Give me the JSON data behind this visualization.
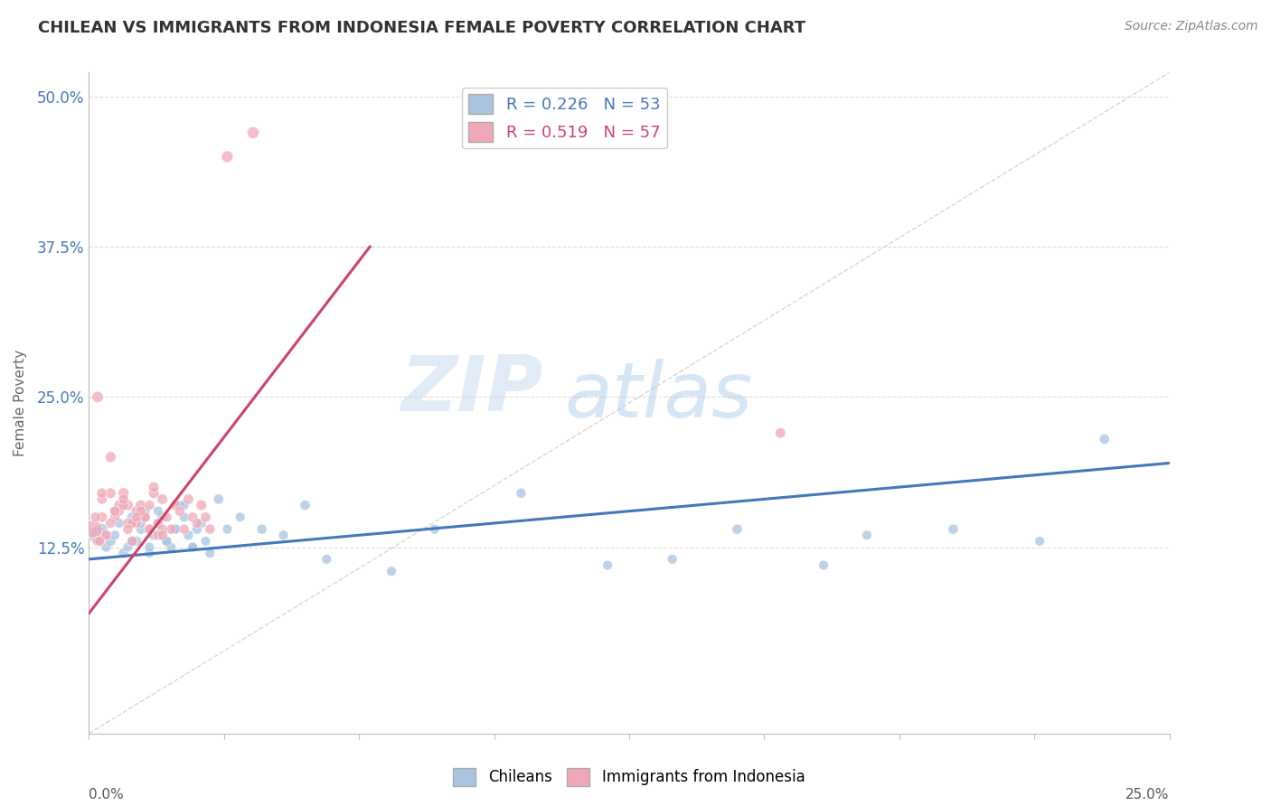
{
  "title": "CHILEAN VS IMMIGRANTS FROM INDONESIA FEMALE POVERTY CORRELATION CHART",
  "source": "Source: ZipAtlas.com",
  "xmin": 0.0,
  "xmax": 25.0,
  "ymin": -3.0,
  "ymax": 52.0,
  "yticks": [
    12.5,
    25.0,
    37.5,
    50.0
  ],
  "ytick_labels": [
    "12.5%",
    "25.0%",
    "37.5%",
    "50.0%"
  ],
  "blue_color": "#a8c4e0",
  "pink_color": "#f0a8b8",
  "blue_line_color": "#4477bb",
  "pink_line_color": "#cc4466",
  "diag_line_color": "#cccccc",
  "grid_color": "#dddddd",
  "title_color": "#333333",
  "source_color": "#888888",
  "watermark_zip": "ZIP",
  "watermark_atlas": "atlas",
  "R_blue": 0.226,
  "N_blue": 53,
  "R_pink": 0.519,
  "N_pink": 57,
  "blue_line_x0": 0.0,
  "blue_line_y0": 11.5,
  "blue_line_x1": 25.0,
  "blue_line_y1": 19.5,
  "pink_line_x0": 0.0,
  "pink_line_y0": 7.0,
  "pink_line_x1": 6.5,
  "pink_line_y1": 37.5,
  "chileans_x": [
    0.2,
    0.3,
    0.4,
    0.5,
    0.6,
    0.7,
    0.8,
    0.9,
    1.0,
    1.1,
    1.2,
    1.3,
    1.4,
    1.5,
    1.6,
    1.7,
    1.8,
    1.9,
    2.0,
    2.1,
    2.2,
    2.3,
    2.4,
    2.5,
    2.6,
    2.7,
    2.8,
    3.0,
    3.2,
    3.5,
    4.0,
    4.5,
    5.0,
    5.5,
    7.0,
    8.0,
    10.0,
    12.0,
    13.5,
    15.0,
    17.0,
    18.0,
    20.0,
    22.0,
    23.5,
    1.0,
    1.2,
    1.4,
    1.6,
    1.8,
    2.0,
    2.2,
    2.4
  ],
  "chileans_y": [
    13.5,
    14.0,
    12.5,
    13.0,
    13.5,
    14.5,
    12.0,
    12.5,
    15.0,
    13.0,
    14.0,
    15.5,
    12.0,
    13.5,
    14.5,
    15.0,
    13.0,
    12.5,
    14.0,
    16.0,
    15.0,
    13.5,
    12.5,
    14.0,
    14.5,
    13.0,
    12.0,
    16.5,
    14.0,
    15.0,
    14.0,
    13.5,
    16.0,
    11.5,
    10.5,
    14.0,
    17.0,
    11.0,
    11.5,
    14.0,
    11.0,
    13.5,
    14.0,
    13.0,
    21.5,
    13.0,
    14.5,
    12.5,
    15.5,
    13.0,
    14.0,
    16.0,
    12.5
  ],
  "chileans_size": [
    200,
    80,
    60,
    70,
    60,
    60,
    65,
    60,
    70,
    65,
    65,
    60,
    60,
    65,
    60,
    65,
    65,
    60,
    65,
    60,
    60,
    65,
    60,
    65,
    60,
    60,
    60,
    65,
    60,
    60,
    65,
    60,
    65,
    60,
    60,
    60,
    65,
    60,
    60,
    65,
    60,
    60,
    65,
    60,
    65,
    60,
    60,
    60,
    60,
    60,
    60,
    60,
    60
  ],
  "indonesia_x": [
    0.1,
    0.2,
    0.3,
    0.4,
    0.5,
    0.6,
    0.7,
    0.8,
    0.9,
    1.0,
    1.1,
    1.2,
    1.3,
    1.4,
    1.5,
    1.6,
    1.7,
    1.8,
    1.9,
    2.0,
    2.1,
    2.2,
    2.3,
    2.4,
    2.5,
    2.6,
    2.7,
    2.8,
    0.3,
    0.5,
    0.7,
    0.9,
    1.1,
    1.3,
    1.5,
    1.7,
    0.4,
    0.6,
    0.8,
    1.0,
    1.2,
    1.4,
    1.6,
    0.2,
    0.5,
    0.8,
    1.1,
    1.4,
    1.7,
    0.3,
    0.6,
    0.9,
    3.2,
    3.8,
    16.0,
    0.15,
    0.25
  ],
  "indonesia_y": [
    14.0,
    25.0,
    15.0,
    13.5,
    20.0,
    15.5,
    16.0,
    17.0,
    14.5,
    13.0,
    15.5,
    16.0,
    15.0,
    14.0,
    17.0,
    14.5,
    16.5,
    15.0,
    14.0,
    16.0,
    15.5,
    14.0,
    16.5,
    15.0,
    14.5,
    16.0,
    15.0,
    14.0,
    16.5,
    17.0,
    15.5,
    16.0,
    14.5,
    15.0,
    17.5,
    14.0,
    13.5,
    15.0,
    16.0,
    14.5,
    15.5,
    16.0,
    13.5,
    13.0,
    14.5,
    16.5,
    15.0,
    14.0,
    13.5,
    17.0,
    15.5,
    14.0,
    45.0,
    47.0,
    22.0,
    15.0,
    13.0
  ],
  "indonesia_size": [
    200,
    80,
    70,
    65,
    75,
    65,
    70,
    75,
    65,
    65,
    70,
    70,
    65,
    65,
    70,
    65,
    70,
    65,
    65,
    70,
    65,
    65,
    70,
    65,
    65,
    70,
    65,
    65,
    65,
    70,
    65,
    70,
    65,
    65,
    70,
    65,
    65,
    65,
    65,
    65,
    65,
    65,
    65,
    65,
    65,
    65,
    65,
    65,
    65,
    65,
    65,
    65,
    85,
    90,
    70,
    65,
    65
  ]
}
